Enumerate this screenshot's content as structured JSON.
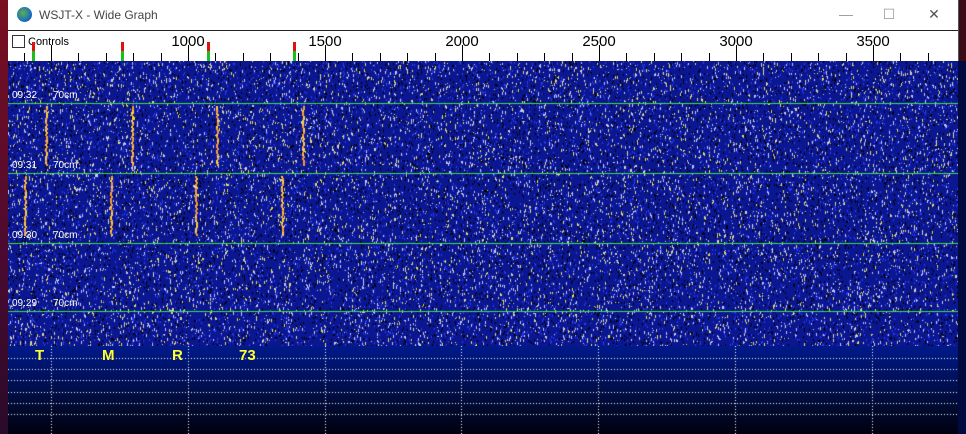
{
  "window": {
    "title": "WSJT-X - Wide Graph",
    "minimize": "—",
    "maximize": "☐",
    "close": "✕"
  },
  "controls": {
    "label": "Controls",
    "checked": false
  },
  "scale": {
    "labels": [
      "1000",
      "1500",
      "2000",
      "2500",
      "3000",
      "3500"
    ],
    "label_hz": [
      1000,
      1500,
      2000,
      2500,
      3000,
      3500
    ],
    "rx_markers_hz": [
      510,
      1090,
      1390
    ],
    "tx_markers_hz": [
      760,
      1100,
      1390
    ]
  },
  "waterfall": {
    "rows": [
      {
        "time": "09:32",
        "band": "70cm"
      },
      {
        "time": "09:31",
        "band": "70cm"
      },
      {
        "time": "09:30",
        "band": "70cm"
      },
      {
        "time": "09:29",
        "band": "70cm"
      }
    ]
  },
  "spectrum": {
    "modes": [
      "T",
      "M",
      "R",
      "73"
    ]
  },
  "colors": {
    "waterfall_bg": "#0a1a9a",
    "separator": "#40e040",
    "tone_text": "#ffff30"
  }
}
